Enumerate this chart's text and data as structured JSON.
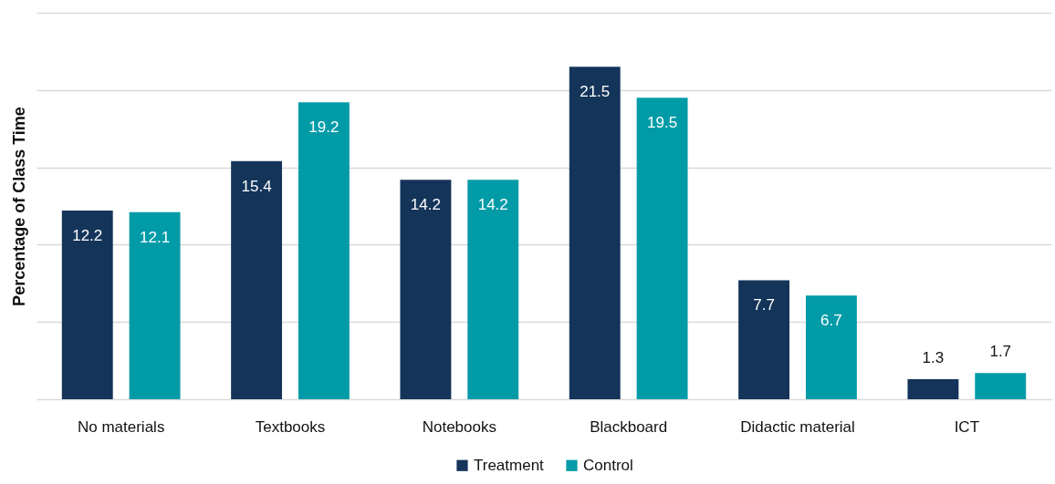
{
  "chart_data": {
    "type": "bar",
    "ylabel": "Percentage of Class Time",
    "categories": [
      "No materials",
      "Textbooks",
      "Notebooks",
      "Blackboard",
      "Didactic material",
      "ICT"
    ],
    "series": [
      {
        "name": "Treatment",
        "color": "#14345a",
        "values": [
          12.2,
          15.4,
          14.2,
          21.5,
          7.7,
          1.3
        ]
      },
      {
        "name": "Control",
        "color": "#019ba7",
        "values": [
          12.1,
          19.2,
          14.2,
          19.5,
          6.7,
          1.7
        ]
      }
    ],
    "ylim": [
      0,
      25
    ],
    "yticks": [
      {
        "value": 0,
        "label": null
      },
      {
        "value": 5,
        "label": null
      },
      {
        "value": 10,
        "label": null
      },
      {
        "value": 15,
        "label": null
      },
      {
        "value": 20,
        "label": null
      },
      {
        "value": 25,
        "label": null
      }
    ],
    "grid": "y",
    "legend": "bottom",
    "tick_labels": "x",
    "data_labels": true
  }
}
